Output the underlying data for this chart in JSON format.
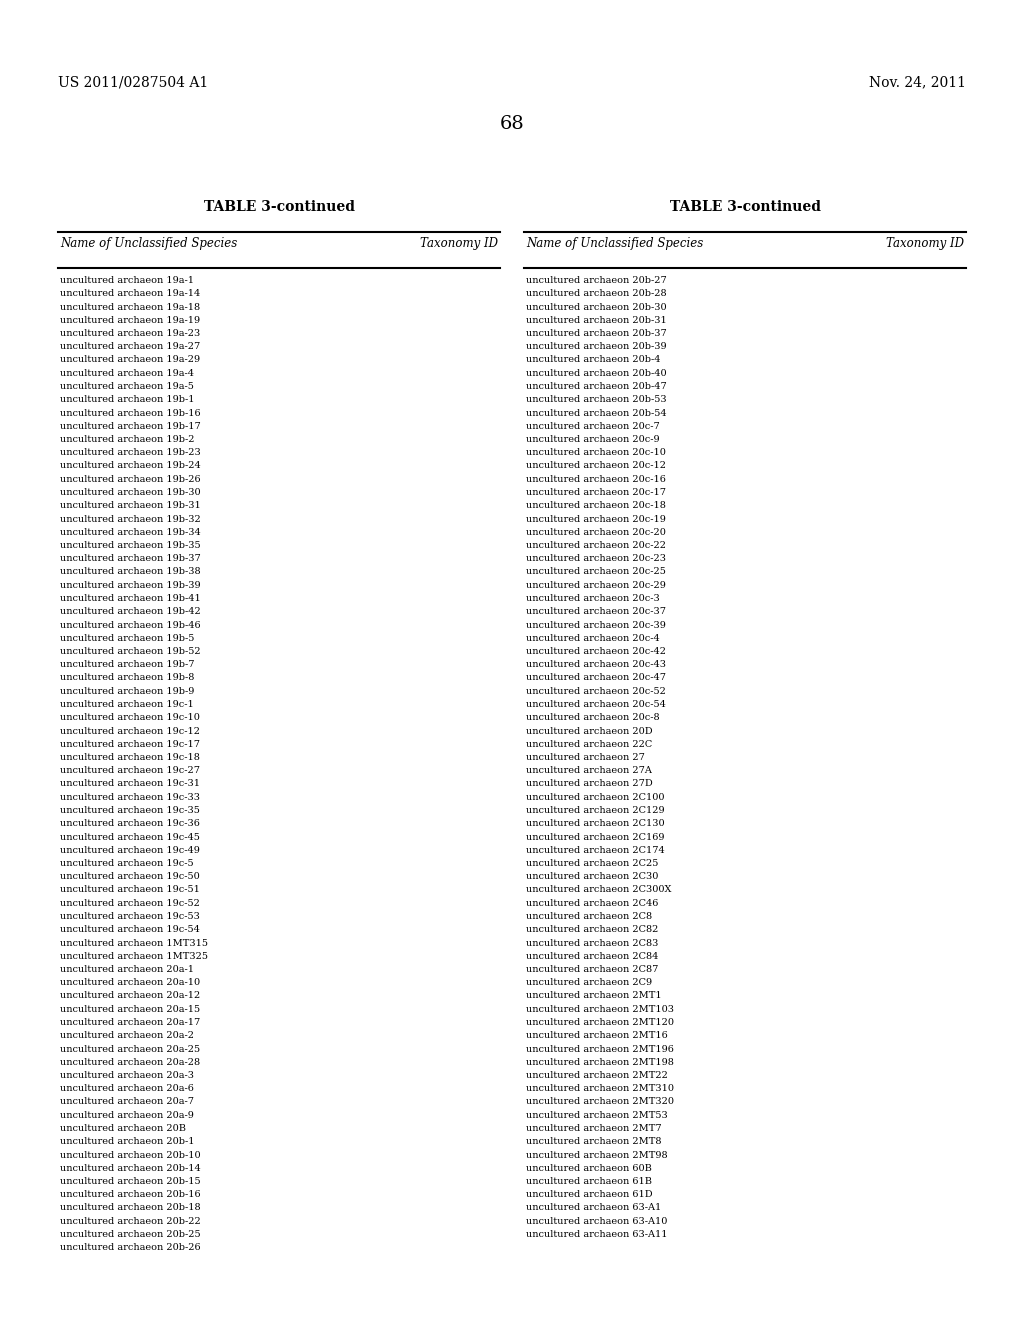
{
  "header_left": "US 2011/0287504 A1",
  "header_right": "Nov. 24, 2011",
  "page_number": "68",
  "table_title": "TABLE 3-continued",
  "col1_header": "Name of Unclassified Species",
  "col2_header": "Taxonomy ID",
  "col3_header": "Name of Unclassified Species",
  "col4_header": "Taxonomy ID",
  "left_column": [
    "uncultured archaeon 19a-1",
    "uncultured archaeon 19a-14",
    "uncultured archaeon 19a-18",
    "uncultured archaeon 19a-19",
    "uncultured archaeon 19a-23",
    "uncultured archaeon 19a-27",
    "uncultured archaeon 19a-29",
    "uncultured archaeon 19a-4",
    "uncultured archaeon 19a-5",
    "uncultured archaeon 19b-1",
    "uncultured archaeon 19b-16",
    "uncultured archaeon 19b-17",
    "uncultured archaeon 19b-2",
    "uncultured archaeon 19b-23",
    "uncultured archaeon 19b-24",
    "uncultured archaeon 19b-26",
    "uncultured archaeon 19b-30",
    "uncultured archaeon 19b-31",
    "uncultured archaeon 19b-32",
    "uncultured archaeon 19b-34",
    "uncultured archaeon 19b-35",
    "uncultured archaeon 19b-37",
    "uncultured archaeon 19b-38",
    "uncultured archaeon 19b-39",
    "uncultured archaeon 19b-41",
    "uncultured archaeon 19b-42",
    "uncultured archaeon 19b-46",
    "uncultured archaeon 19b-5",
    "uncultured archaeon 19b-52",
    "uncultured archaeon 19b-7",
    "uncultured archaeon 19b-8",
    "uncultured archaeon 19b-9",
    "uncultured archaeon 19c-1",
    "uncultured archaeon 19c-10",
    "uncultured archaeon 19c-12",
    "uncultured archaeon 19c-17",
    "uncultured archaeon 19c-18",
    "uncultured archaeon 19c-27",
    "uncultured archaeon 19c-31",
    "uncultured archaeon 19c-33",
    "uncultured archaeon 19c-35",
    "uncultured archaeon 19c-36",
    "uncultured archaeon 19c-45",
    "uncultured archaeon 19c-49",
    "uncultured archaeon 19c-5",
    "uncultured archaeon 19c-50",
    "uncultured archaeon 19c-51",
    "uncultured archaeon 19c-52",
    "uncultured archaeon 19c-53",
    "uncultured archaeon 19c-54",
    "uncultured archaeon 1MT315",
    "uncultured archaeon 1MT325",
    "uncultured archaeon 20a-1",
    "uncultured archaeon 20a-10",
    "uncultured archaeon 20a-12",
    "uncultured archaeon 20a-15",
    "uncultured archaeon 20a-17",
    "uncultured archaeon 20a-2",
    "uncultured archaeon 20a-25",
    "uncultured archaeon 20a-28",
    "uncultured archaeon 20a-3",
    "uncultured archaeon 20a-6",
    "uncultured archaeon 20a-7",
    "uncultured archaeon 20a-9",
    "uncultured archaeon 20B",
    "uncultured archaeon 20b-1",
    "uncultured archaeon 20b-10",
    "uncultured archaeon 20b-14",
    "uncultured archaeon 20b-15",
    "uncultured archaeon 20b-16",
    "uncultured archaeon 20b-18",
    "uncultured archaeon 20b-22",
    "uncultured archaeon 20b-25",
    "uncultured archaeon 20b-26"
  ],
  "right_column": [
    "uncultured archaeon 20b-27",
    "uncultured archaeon 20b-28",
    "uncultured archaeon 20b-30",
    "uncultured archaeon 20b-31",
    "uncultured archaeon 20b-37",
    "uncultured archaeon 20b-39",
    "uncultured archaeon 20b-4",
    "uncultured archaeon 20b-40",
    "uncultured archaeon 20b-47",
    "uncultured archaeon 20b-53",
    "uncultured archaeon 20b-54",
    "uncultured archaeon 20c-7",
    "uncultured archaeon 20c-9",
    "uncultured archaeon 20c-10",
    "uncultured archaeon 20c-12",
    "uncultured archaeon 20c-16",
    "uncultured archaeon 20c-17",
    "uncultured archaeon 20c-18",
    "uncultured archaeon 20c-19",
    "uncultured archaeon 20c-20",
    "uncultured archaeon 20c-22",
    "uncultured archaeon 20c-23",
    "uncultured archaeon 20c-25",
    "uncultured archaeon 20c-29",
    "uncultured archaeon 20c-3",
    "uncultured archaeon 20c-37",
    "uncultured archaeon 20c-39",
    "uncultured archaeon 20c-4",
    "uncultured archaeon 20c-42",
    "uncultured archaeon 20c-43",
    "uncultured archaeon 20c-47",
    "uncultured archaeon 20c-52",
    "uncultured archaeon 20c-54",
    "uncultured archaeon 20c-8",
    "uncultured archaeon 20D",
    "uncultured archaeon 22C",
    "uncultured archaeon 27",
    "uncultured archaeon 27A",
    "uncultured archaeon 27D",
    "uncultured archaeon 2C100",
    "uncultured archaeon 2C129",
    "uncultured archaeon 2C130",
    "uncultured archaeon 2C169",
    "uncultured archaeon 2C174",
    "uncultured archaeon 2C25",
    "uncultured archaeon 2C30",
    "uncultured archaeon 2C300X",
    "uncultured archaeon 2C46",
    "uncultured archaeon 2C8",
    "uncultured archaeon 2C82",
    "uncultured archaeon 2C83",
    "uncultured archaeon 2C84",
    "uncultured archaeon 2C87",
    "uncultured archaeon 2C9",
    "uncultured archaeon 2MT1",
    "uncultured archaeon 2MT103",
    "uncultured archaeon 2MT120",
    "uncultured archaeon 2MT16",
    "uncultured archaeon 2MT196",
    "uncultured archaeon 2MT198",
    "uncultured archaeon 2MT22",
    "uncultured archaeon 2MT310",
    "uncultured archaeon 2MT320",
    "uncultured archaeon 2MT53",
    "uncultured archaeon 2MT7",
    "uncultured archaeon 2MT8",
    "uncultured archaeon 2MT98",
    "uncultured archaeon 60B",
    "uncultured archaeon 61B",
    "uncultured archaeon 61D",
    "uncultured archaeon 63-A1",
    "uncultured archaeon 63-A10",
    "uncultured archaeon 63-A11"
  ],
  "background_color": "#ffffff",
  "text_color": "#000000",
  "font_size": 7.0,
  "header_font_size": 8.5,
  "title_font_size": 10.0,
  "page_header_font_size": 10.0,
  "page_number_font_size": 14.0
}
